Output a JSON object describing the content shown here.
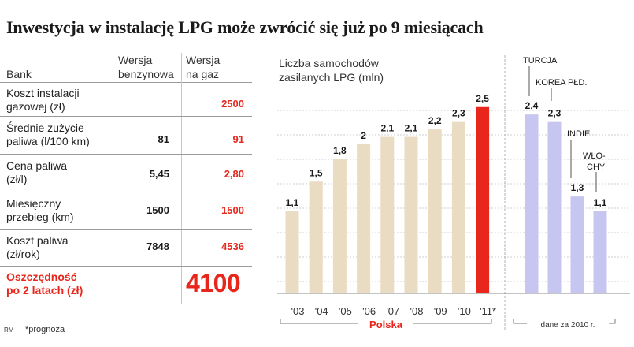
{
  "title": "Inwestycja w instalację LPG może zwrócić się już po 9 miesiącach",
  "table": {
    "headers": {
      "bank": "Bank",
      "petrol_l1": "Wersja",
      "petrol_l2": "benzynowa",
      "lpg_l1": "Wersja",
      "lpg_l2": "na gaz"
    },
    "rows": [
      {
        "l1": "Koszt instalacji",
        "l2": "gazowej (zł)",
        "petrol": "",
        "lpg": "2500"
      },
      {
        "l1": "Średnie zużycie",
        "l2": "paliwa (l/100 km)",
        "petrol": "81",
        "lpg": "91"
      },
      {
        "l1": "Cena paliwa",
        "l2": "(zł/l)",
        "petrol": "5,45",
        "lpg": "2,80"
      },
      {
        "l1": "Miesięczny",
        "l2": "przebieg (km)",
        "petrol": "1500",
        "lpg": "1500"
      },
      {
        "l1": "Koszt paliwa",
        "l2": "(zł/rok)",
        "petrol": "7848",
        "lpg": "4536"
      }
    ],
    "savings": {
      "l1": "Oszczędność",
      "l2": "po 2 latach (zł)",
      "value": "4100"
    }
  },
  "footer": {
    "credit": "RM",
    "note": "*prognoza"
  },
  "colors": {
    "poland": "#eadcc3",
    "forecast": "#e8261c",
    "other": "#c7c6f0",
    "accent": "#e8261c"
  },
  "chart_data": {
    "type": "bar",
    "title": "Liczba samochodów zasilanych LPG (mln)",
    "title_l1": "Liczba samochodów",
    "title_l2": "zasilanych LPG (mln)",
    "ylim": [
      0,
      2.9
    ],
    "groups": {
      "poland": "Polska",
      "other": "dane za 2010 r."
    },
    "poland": {
      "categories": [
        "'03",
        "'04",
        "'05",
        "'06",
        "'07",
        "'08",
        "'09",
        "'10",
        "'11*"
      ],
      "values": [
        1.1,
        1.5,
        1.8,
        2.0,
        2.1,
        2.1,
        2.2,
        2.3,
        2.5
      ],
      "labels": [
        "1,1",
        "1,5",
        "1,8",
        "2",
        "2,1",
        "2,1",
        "2,2",
        "2,3",
        "2,5"
      ]
    },
    "other": {
      "categories": [
        "TURCJA",
        "KOREA PŁD.",
        "INDIE",
        "WŁO-CHY"
      ],
      "name_lines": [
        [
          "TURCJA"
        ],
        [
          "KOREA PŁD."
        ],
        [
          "INDIE"
        ],
        [
          "WŁO-",
          "CHY"
        ]
      ],
      "values": [
        2.4,
        2.3,
        1.3,
        1.1
      ],
      "labels": [
        "2,4",
        "2,3",
        "1,3",
        "1,1"
      ]
    }
  }
}
